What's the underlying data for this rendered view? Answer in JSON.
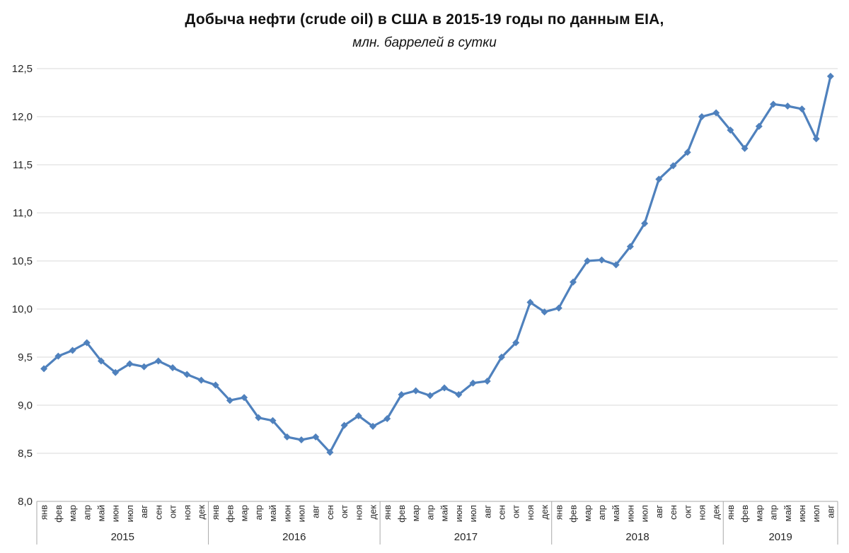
{
  "chart_data": {
    "type": "line",
    "title": "Добыча нефти (crude oil) в США в 2015-19 годы по данным EIA,",
    "subtitle": "млн. баррелей в сутки",
    "ylim": [
      8.0,
      12.5
    ],
    "ytick_step": 0.5,
    "ytick_labels": [
      "8,0",
      "8,5",
      "9,0",
      "9,5",
      "10,0",
      "10,5",
      "11,0",
      "11,5",
      "12,0",
      "12,5"
    ],
    "grid": true,
    "legend_position": "none",
    "marker": "diamond",
    "groups": [
      {
        "year": "2015",
        "months": [
          "янв",
          "фев",
          "мар",
          "апр",
          "май",
          "июн",
          "июл",
          "авг",
          "сен",
          "окт",
          "ноя",
          "дек"
        ],
        "values": [
          9.38,
          9.51,
          9.57,
          9.65,
          9.46,
          9.34,
          9.43,
          9.4,
          9.46,
          9.39,
          9.32,
          9.26
        ]
      },
      {
        "year": "2016",
        "months": [
          "янв",
          "фев",
          "мар",
          "апр",
          "май",
          "июн",
          "июл",
          "авг",
          "сен",
          "окт",
          "ноя",
          "дек"
        ],
        "values": [
          9.21,
          9.05,
          9.08,
          8.87,
          8.84,
          8.67,
          8.64,
          8.67,
          8.51,
          8.79,
          8.89,
          8.78
        ]
      },
      {
        "year": "2017",
        "months": [
          "янв",
          "фев",
          "мар",
          "апр",
          "май",
          "июн",
          "июл",
          "авг",
          "сен",
          "окт",
          "ноя",
          "дек"
        ],
        "values": [
          8.86,
          9.11,
          9.15,
          9.1,
          9.18,
          9.11,
          9.23,
          9.25,
          9.5,
          9.65,
          10.07,
          9.97
        ]
      },
      {
        "year": "2018",
        "months": [
          "янв",
          "фев",
          "мар",
          "апр",
          "май",
          "июн",
          "июл",
          "авг",
          "сен",
          "окт",
          "ноя",
          "дек"
        ],
        "values": [
          10.01,
          10.28,
          10.5,
          10.51,
          10.46,
          10.65,
          10.89,
          11.35,
          11.49,
          11.63,
          12.0,
          12.04
        ]
      },
      {
        "year": "2019",
        "months": [
          "янв",
          "фев",
          "мар",
          "апр",
          "май",
          "июн",
          "июл",
          "авг"
        ],
        "values": [
          11.86,
          11.67,
          11.9,
          12.13,
          12.11,
          12.08,
          11.77,
          12.42
        ]
      }
    ],
    "colors": {
      "line": "#4f81bd",
      "grid": "#d9d9d9",
      "axis": "#a9a9a9",
      "divider": "#a9a9a9",
      "tick_text": "#262626",
      "title_text": "#111111"
    }
  }
}
